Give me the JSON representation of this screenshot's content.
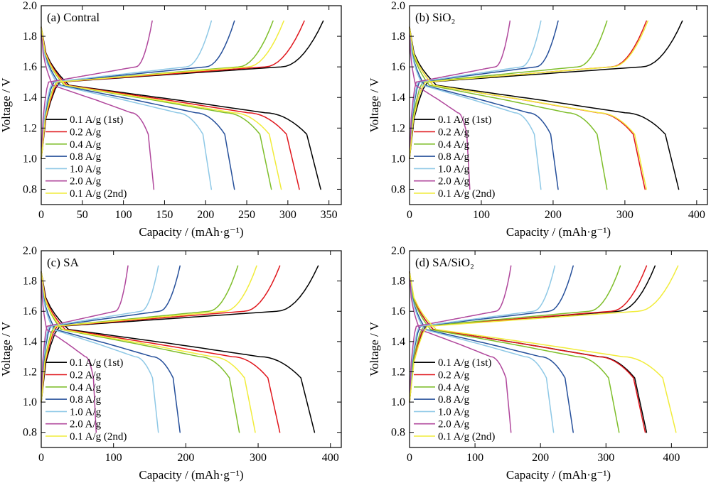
{
  "colors": {
    "0.1 A/g (1st)": "#000000",
    "0.2 A/g": "#e0161c",
    "0.4 A/g": "#7ebe2a",
    "0.8 A/g": "#254f9a",
    "1.0 A/g": "#8ec8e6",
    "2.0 A/g": "#b0479c",
    "0.1 A/g (2nd)": "#f1ec3a"
  },
  "chart_data": [
    {
      "type": "line",
      "title": "(a) Contral",
      "xlabel": "Capacity / (mAh·g⁻¹)",
      "ylabel": "Voltage / V",
      "xlim": [
        0,
        365
      ],
      "ylim": [
        0.7,
        2.0
      ],
      "xticks": [
        0,
        50,
        100,
        150,
        200,
        250,
        300,
        350
      ],
      "yticks": [
        0.8,
        1.0,
        1.2,
        1.4,
        1.6,
        1.8,
        2.0
      ],
      "legend_position": "bottom-left",
      "series": [
        {
          "name": "0.1 A/g (1st)",
          "discharge_capacity": 340,
          "charge_capacity": 343
        },
        {
          "name": "0.2 A/g",
          "discharge_capacity": 314,
          "charge_capacity": 320
        },
        {
          "name": "0.4 A/g",
          "discharge_capacity": 280,
          "charge_capacity": 282
        },
        {
          "name": "0.8 A/g",
          "discharge_capacity": 235,
          "charge_capacity": 235
        },
        {
          "name": "1.0 A/g",
          "discharge_capacity": 207,
          "charge_capacity": 207
        },
        {
          "name": "2.0 A/g",
          "discharge_capacity": 137,
          "charge_capacity": 135
        },
        {
          "name": "0.1 A/g (2nd)",
          "discharge_capacity": 292,
          "charge_capacity": 295
        }
      ]
    },
    {
      "type": "line",
      "title": "(b) SiO₂",
      "xlabel": "Capacity / (mAh·g⁻¹)",
      "ylabel": "Voltage / V",
      "xlim": [
        0,
        415
      ],
      "ylim": [
        0.7,
        2.0
      ],
      "xticks": [
        0,
        100,
        200,
        300,
        400
      ],
      "yticks": [
        0.8,
        1.0,
        1.2,
        1.4,
        1.6,
        1.8,
        2.0
      ],
      "legend_position": "bottom-left",
      "series": [
        {
          "name": "0.1 A/g (1st)",
          "discharge_capacity": 375,
          "charge_capacity": 380
        },
        {
          "name": "0.2 A/g",
          "discharge_capacity": 328,
          "charge_capacity": 330
        },
        {
          "name": "0.4 A/g",
          "discharge_capacity": 275,
          "charge_capacity": 275
        },
        {
          "name": "0.8 A/g",
          "discharge_capacity": 207,
          "charge_capacity": 207
        },
        {
          "name": "1.0 A/g",
          "discharge_capacity": 183,
          "charge_capacity": 183
        },
        {
          "name": "2.0 A/g",
          "discharge_capacity": 84,
          "charge_capacity": 140
        },
        {
          "name": "0.1 A/g (2nd)",
          "discharge_capacity": 330,
          "charge_capacity": 332
        }
      ]
    },
    {
      "type": "line",
      "title": "(c) SA",
      "xlabel": "Capacity / (mAh·g⁻¹)",
      "ylabel": "Voltage / V",
      "xlim": [
        0,
        415
      ],
      "ylim": [
        0.7,
        2.0
      ],
      "xticks": [
        0,
        100,
        200,
        300,
        400
      ],
      "yticks": [
        0.8,
        1.0,
        1.2,
        1.4,
        1.6,
        1.8,
        2.0
      ],
      "legend_position": "bottom-left",
      "series": [
        {
          "name": "0.1 A/g (1st)",
          "discharge_capacity": 378,
          "charge_capacity": 383
        },
        {
          "name": "0.2 A/g",
          "discharge_capacity": 330,
          "charge_capacity": 330
        },
        {
          "name": "0.4 A/g",
          "discharge_capacity": 274,
          "charge_capacity": 272
        },
        {
          "name": "0.8 A/g",
          "discharge_capacity": 192,
          "charge_capacity": 192
        },
        {
          "name": "1.0 A/g",
          "discharge_capacity": 162,
          "charge_capacity": 162
        },
        {
          "name": "2.0 A/g",
          "discharge_capacity": 76,
          "charge_capacity": 120
        },
        {
          "name": "0.1 A/g (2nd)",
          "discharge_capacity": 296,
          "charge_capacity": 298
        }
      ]
    },
    {
      "type": "line",
      "title": "(d) SA/SiO₂",
      "xlabel": "Capacity / (mAh·g⁻¹)",
      "ylabel": "Voltage / V",
      "xlim": [
        0,
        455
      ],
      "ylim": [
        0.7,
        2.0
      ],
      "xticks": [
        0,
        100,
        200,
        300,
        400
      ],
      "yticks": [
        0.8,
        1.0,
        1.2,
        1.4,
        1.6,
        1.8,
        2.0
      ],
      "legend_position": "bottom-left",
      "series": [
        {
          "name": "0.1 A/g (1st)",
          "discharge_capacity": 362,
          "charge_capacity": 375
        },
        {
          "name": "0.2 A/g",
          "discharge_capacity": 360,
          "charge_capacity": 362
        },
        {
          "name": "0.4 A/g",
          "discharge_capacity": 320,
          "charge_capacity": 322
        },
        {
          "name": "0.8 A/g",
          "discharge_capacity": 250,
          "charge_capacity": 250
        },
        {
          "name": "1.0 A/g",
          "discharge_capacity": 220,
          "charge_capacity": 222
        },
        {
          "name": "2.0 A/g",
          "discharge_capacity": 155,
          "charge_capacity": 155
        },
        {
          "name": "0.1 A/g (2nd)",
          "discharge_capacity": 407,
          "charge_capacity": 410
        }
      ]
    }
  ]
}
